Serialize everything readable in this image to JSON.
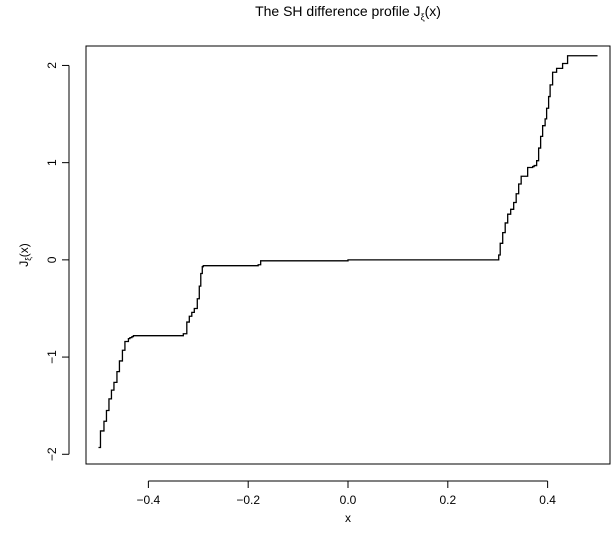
{
  "chart_data": {
    "type": "line",
    "title_main": "The SH difference profile J",
    "title_sub": "ξ",
    "title_tail": "(x)",
    "xlabel": "x",
    "ylabel_main": "J",
    "ylabel_sub": "ξ",
    "ylabel_tail": "(x)",
    "xlim": [
      -0.525,
      0.525
    ],
    "ylim": [
      -2.1,
      2.2
    ],
    "xticks": [
      -0.4,
      -0.2,
      0.0,
      0.2,
      0.4
    ],
    "xtick_labels": [
      "−0.4",
      "−0.2",
      "0.0",
      "0.2",
      "0.4"
    ],
    "yticks": [
      -2,
      -1,
      0,
      1,
      2
    ],
    "ytick_labels": [
      "−2",
      "−1",
      "0",
      "1",
      "2"
    ],
    "grid": false,
    "legend": "none",
    "line_color": "#000000",
    "series": [
      {
        "x": [
          -0.5,
          -0.496,
          -0.489,
          -0.484,
          -0.479,
          -0.474,
          -0.469,
          -0.463,
          -0.458,
          -0.452,
          -0.447,
          -0.44,
          -0.437,
          -0.433,
          -0.43,
          -0.424,
          -0.41,
          -0.33,
          -0.323,
          -0.318,
          -0.313,
          -0.308,
          -0.302,
          -0.298,
          -0.295,
          -0.292,
          -0.29,
          -0.2,
          -0.18,
          -0.175,
          0.0,
          0.2,
          0.298,
          0.302,
          0.305,
          0.31,
          0.315,
          0.32,
          0.326,
          0.332,
          0.337,
          0.342,
          0.347,
          0.36,
          0.37,
          0.373,
          0.378,
          0.382,
          0.386,
          0.39,
          0.395,
          0.398,
          0.402,
          0.405,
          0.41,
          0.418,
          0.43,
          0.44,
          0.46,
          0.5
        ],
        "y": [
          -1.93,
          -1.76,
          -1.66,
          -1.55,
          -1.43,
          -1.34,
          -1.26,
          -1.15,
          -1.04,
          -0.93,
          -0.84,
          -0.81,
          -0.8,
          -0.79,
          -0.78,
          -0.78,
          -0.78,
          -0.76,
          -0.64,
          -0.58,
          -0.54,
          -0.5,
          -0.4,
          -0.27,
          -0.14,
          -0.07,
          -0.06,
          -0.06,
          -0.05,
          -0.01,
          0.0,
          0.0,
          0.0,
          0.05,
          0.17,
          0.28,
          0.38,
          0.47,
          0.52,
          0.59,
          0.68,
          0.78,
          0.86,
          0.95,
          0.96,
          0.97,
          1.02,
          1.15,
          1.27,
          1.38,
          1.45,
          1.56,
          1.68,
          1.8,
          1.93,
          1.97,
          2.02,
          2.1,
          2.1,
          2.1
        ]
      }
    ]
  }
}
